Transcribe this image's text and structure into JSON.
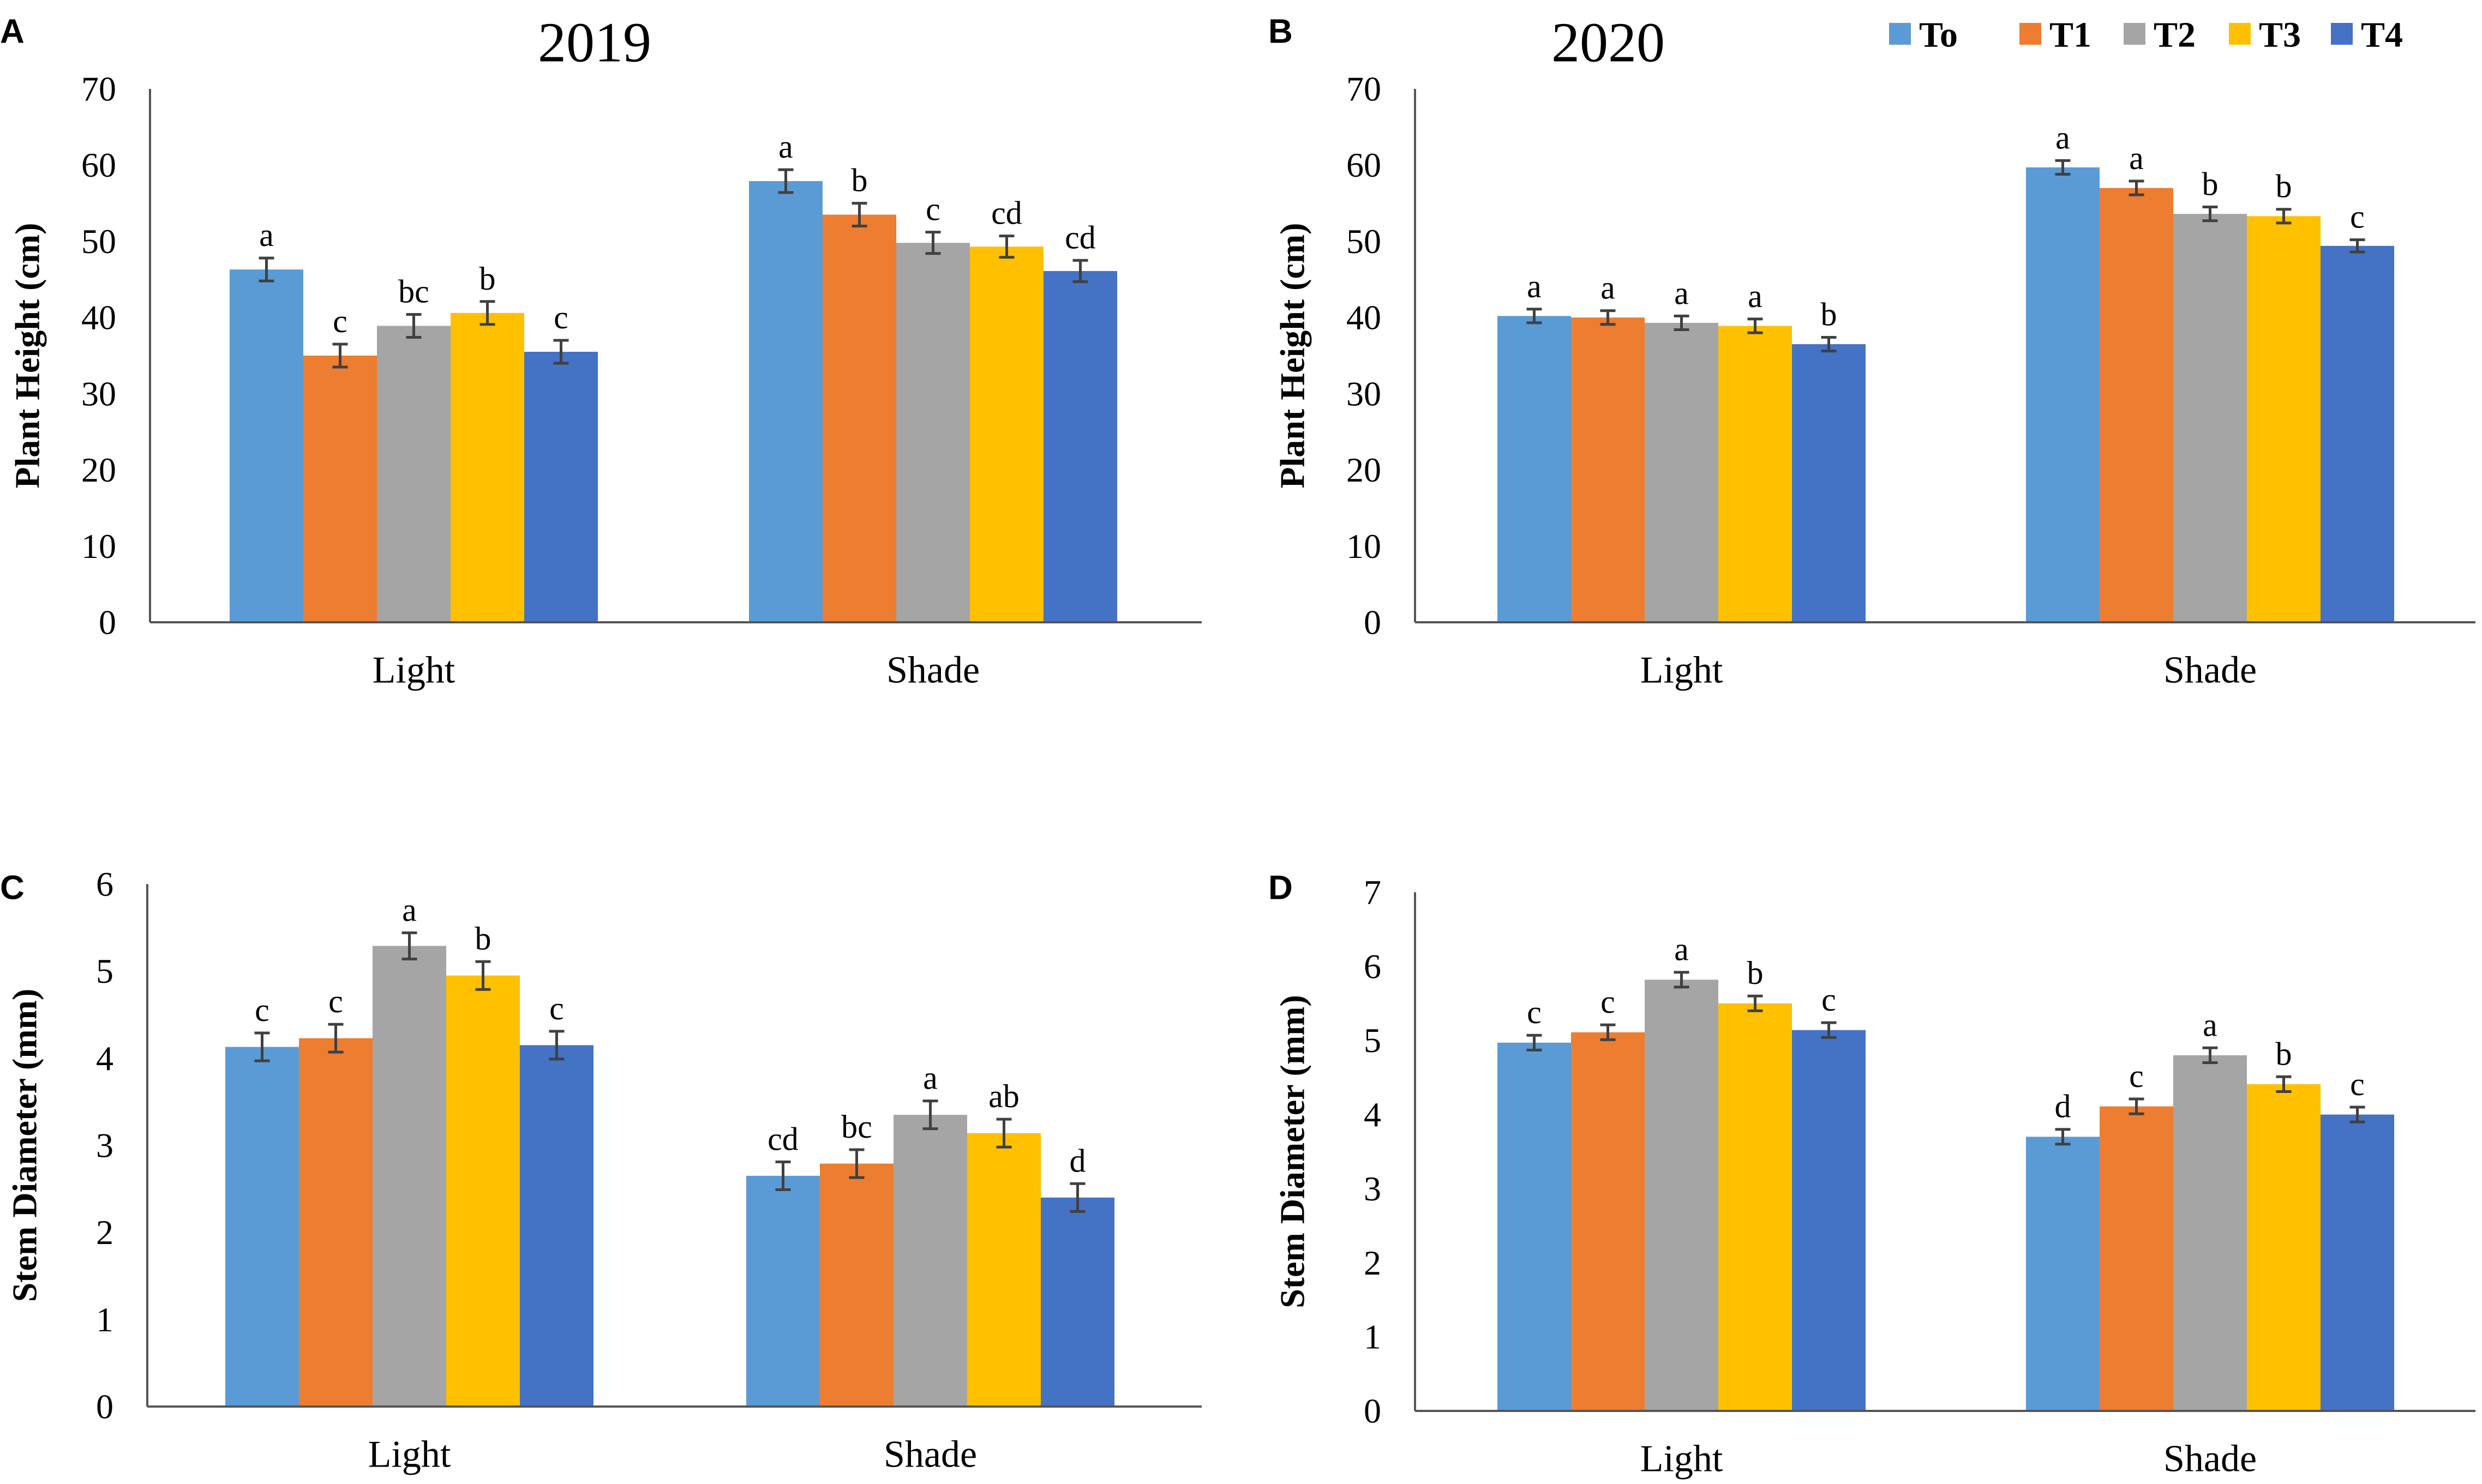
{
  "legend": [
    {
      "key": "To",
      "label": "To",
      "color": "#5B9BD5"
    },
    {
      "key": "T1",
      "label": "T1",
      "color": "#ED7D31"
    },
    {
      "key": "T2",
      "label": "T2",
      "color": "#A5A5A5"
    },
    {
      "key": "T3",
      "label": "T3",
      "color": "#FFC000"
    },
    {
      "key": "T4",
      "label": "T4",
      "color": "#4472C4"
    }
  ],
  "chart_data": [
    {
      "panel": "A",
      "type": "bar",
      "title": "2019",
      "xlabel": "",
      "ylabel": "Plant Height (cm)",
      "ylim": [
        0,
        70
      ],
      "yticks": [
        "0",
        "10",
        "20",
        "30",
        "40",
        "50",
        "60",
        "70"
      ],
      "grid": false,
      "categories": [
        "Light",
        "Shade"
      ],
      "series": [
        {
          "name": "To",
          "values": [
            46.3,
            57.9
          ],
          "errors": [
            1.5,
            1.5
          ],
          "labels": [
            "a",
            "a"
          ]
        },
        {
          "name": "T1",
          "values": [
            35.0,
            53.5
          ],
          "errors": [
            1.5,
            1.5
          ],
          "labels": [
            "c",
            "b"
          ]
        },
        {
          "name": "T2",
          "values": [
            38.9,
            49.8
          ],
          "errors": [
            1.5,
            1.4
          ],
          "labels": [
            "bc",
            "c"
          ]
        },
        {
          "name": "T3",
          "values": [
            40.6,
            49.3
          ],
          "errors": [
            1.5,
            1.4
          ],
          "labels": [
            "b",
            "cd"
          ]
        },
        {
          "name": "T4",
          "values": [
            35.5,
            46.1
          ],
          "errors": [
            1.5,
            1.4
          ],
          "labels": [
            "c",
            "cd"
          ]
        }
      ]
    },
    {
      "panel": "B",
      "type": "bar",
      "title": "2020",
      "xlabel": "",
      "ylabel": "Plant Height (cm)",
      "ylim": [
        0,
        70
      ],
      "yticks": [
        "0",
        "10",
        "20",
        "30",
        "40",
        "50",
        "60",
        "70"
      ],
      "grid": false,
      "legend_position": "top-right",
      "categories": [
        "Light",
        "Shade"
      ],
      "series": [
        {
          "name": "To",
          "values": [
            40.2,
            59.7
          ],
          "errors": [
            0.9,
            0.9
          ],
          "labels": [
            "a",
            "a"
          ]
        },
        {
          "name": "T1",
          "values": [
            40.0,
            57.0
          ],
          "errors": [
            0.9,
            0.9
          ],
          "labels": [
            "a",
            "a"
          ]
        },
        {
          "name": "T2",
          "values": [
            39.3,
            53.6
          ],
          "errors": [
            0.9,
            0.9
          ],
          "labels": [
            "a",
            "b"
          ]
        },
        {
          "name": "T3",
          "values": [
            38.9,
            53.3
          ],
          "errors": [
            0.9,
            0.9
          ],
          "labels": [
            "a",
            "b"
          ]
        },
        {
          "name": "T4",
          "values": [
            36.5,
            49.4
          ],
          "errors": [
            0.9,
            0.8
          ],
          "labels": [
            "b",
            "c"
          ]
        }
      ]
    },
    {
      "panel": "C",
      "type": "bar",
      "title": "",
      "xlabel": "",
      "ylabel": "Stem Diameter (mm)",
      "ylim": [
        0,
        6
      ],
      "yticks": [
        "0",
        "1",
        "2",
        "3",
        "4",
        "5",
        "6"
      ],
      "grid": false,
      "categories": [
        "Light",
        "Shade"
      ],
      "series": [
        {
          "name": "To",
          "values": [
            4.13,
            2.65
          ],
          "errors": [
            0.16,
            0.16
          ],
          "labels": [
            "c",
            "cd"
          ]
        },
        {
          "name": "T1",
          "values": [
            4.23,
            2.79
          ],
          "errors": [
            0.16,
            0.16
          ],
          "labels": [
            "c",
            "bc"
          ]
        },
        {
          "name": "T2",
          "values": [
            5.29,
            3.35
          ],
          "errors": [
            0.15,
            0.16
          ],
          "labels": [
            "a",
            "a"
          ]
        },
        {
          "name": "T3",
          "values": [
            4.95,
            3.14
          ],
          "errors": [
            0.16,
            0.16
          ],
          "labels": [
            "b",
            "ab"
          ]
        },
        {
          "name": "T4",
          "values": [
            4.15,
            2.4
          ],
          "errors": [
            0.16,
            0.16
          ],
          "labels": [
            "c",
            "d"
          ]
        }
      ]
    },
    {
      "panel": "D",
      "type": "bar",
      "title": "",
      "xlabel": "",
      "ylabel": "Stem Diameter (mm)",
      "ylim": [
        0,
        7
      ],
      "yticks": [
        "0",
        "1",
        "2",
        "3",
        "4",
        "5",
        "6",
        "7"
      ],
      "grid": false,
      "categories": [
        "Light",
        "Shade"
      ],
      "series": [
        {
          "name": "To",
          "values": [
            4.97,
            3.7
          ],
          "errors": [
            0.1,
            0.1
          ],
          "labels": [
            "c",
            "d"
          ]
        },
        {
          "name": "T1",
          "values": [
            5.11,
            4.11
          ],
          "errors": [
            0.1,
            0.1
          ],
          "labels": [
            "c",
            "c"
          ]
        },
        {
          "name": "T2",
          "values": [
            5.82,
            4.8
          ],
          "errors": [
            0.1,
            0.1
          ],
          "labels": [
            "a",
            "a"
          ]
        },
        {
          "name": "T3",
          "values": [
            5.5,
            4.41
          ],
          "errors": [
            0.1,
            0.1
          ],
          "labels": [
            "b",
            "b"
          ]
        },
        {
          "name": "T4",
          "values": [
            5.14,
            4.0
          ],
          "errors": [
            0.1,
            0.1
          ],
          "labels": [
            "c",
            "c"
          ]
        }
      ]
    }
  ]
}
